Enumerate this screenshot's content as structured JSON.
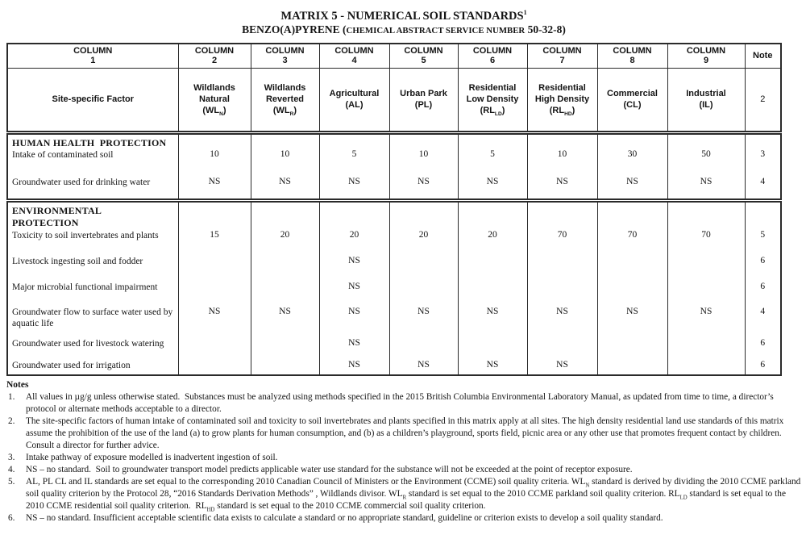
{
  "title": {
    "line1_html": "MATRIX 5 - NUMERICAL SOIL STANDARDS<sup>1</sup>",
    "line2_html": "BENZO(A)PYRENE (<span class='cas'>CHEMICAL ABSTRACT SERVICE NUMBER</span> 50-32-8)"
  },
  "table": {
    "columns": [
      {
        "num_html": "COLUMN<br>1",
        "label_html": "Site-specific Factor"
      },
      {
        "num_html": "COLUMN<br>2",
        "label_html": "Wildlands<br>Natural<br>(WL<sub>N</sub>)"
      },
      {
        "num_html": "COLUMN<br>3",
        "label_html": "Wildlands<br>Reverted<br>(WL<sub>R</sub>)"
      },
      {
        "num_html": "COLUMN<br>4",
        "label_html": "Agricultural<br>(AL)"
      },
      {
        "num_html": "COLUMN<br>5",
        "label_html": "Urban Park<br>(PL)"
      },
      {
        "num_html": "COLUMN<br>6",
        "label_html": "Residential<br>Low Density<br>(RL<sub>LD</sub>)"
      },
      {
        "num_html": "COLUMN<br>7",
        "label_html": "Residential<br>High Density<br>(RL<sub>HD</sub>)"
      },
      {
        "num_html": "COLUMN<br>8",
        "label_html": "Commercial<br>(CL)"
      },
      {
        "num_html": "COLUMN<br>9",
        "label_html": "Industrial<br>(IL)"
      },
      {
        "num_html": "Note",
        "label_html": "2"
      }
    ],
    "sections": [
      {
        "heading_html": "HUMAN HEALTH&nbsp; PROTECTION",
        "rows": [
          {
            "label": "Intake of contaminated soil",
            "values": [
              "10",
              "10",
              "5",
              "10",
              "5",
              "10",
              "30",
              "50"
            ],
            "note": "3"
          },
          {
            "label": "Groundwater used for drinking water",
            "values": [
              "NS",
              "NS",
              "NS",
              "NS",
              "NS",
              "NS",
              "NS",
              "NS"
            ],
            "note": "4"
          }
        ]
      },
      {
        "heading_html": "ENVIRONMENTAL<br>PROTECTION",
        "rows": [
          {
            "label": "Toxicity to soil invertebrates and plants",
            "values": [
              "15",
              "20",
              "20",
              "20",
              "20",
              "70",
              "70",
              "70"
            ],
            "note": "5"
          },
          {
            "label": "Livestock ingesting soil and fodder",
            "values": [
              "",
              "",
              "NS",
              "",
              "",
              "",
              "",
              ""
            ],
            "note": "6"
          },
          {
            "label": "Major microbial functional impairment",
            "values": [
              "",
              "",
              "NS",
              "",
              "",
              "",
              "",
              ""
            ],
            "note": "6"
          },
          {
            "label": "Groundwater flow to surface water used by aquatic life",
            "values": [
              "NS",
              "NS",
              "NS",
              "NS",
              "NS",
              "NS",
              "NS",
              "NS"
            ],
            "note": "4"
          },
          {
            "label": "Groundwater used for livestock watering",
            "values": [
              "",
              "",
              "NS",
              "",
              "",
              "",
              "",
              ""
            ],
            "note": "6"
          },
          {
            "label": "Groundwater used for irrigation",
            "values": [
              "",
              "",
              "NS",
              "NS",
              "NS",
              "NS",
              "",
              ""
            ],
            "note": "6"
          }
        ]
      }
    ]
  },
  "notes": {
    "heading": "Notes",
    "items": [
      {
        "num": "1.",
        "text_html": "All values in µg/g unless otherwise stated.&nbsp; Substances must be analyzed using methods specified in the 2015 British Columbia Environmental Laboratory Manual, as updated from time to time, a director’s protocol or alternate methods acceptable to a director."
      },
      {
        "num": "2.",
        "text_html": "The site-specific factors of human intake of contaminated soil and toxicity to soil invertebrates and plants specified in this matrix apply at all sites. The high density residential land use standards of this matrix assume the prohibition of the use of the land (a) to grow plants for human consumption, and (b) as a children’s playground, sports field, picnic area or any other use that promotes frequent contact by children. Consult a director for further advice."
      },
      {
        "num": "3.",
        "text_html": "Intake pathway of exposure modelled is inadvertent ingestion of soil."
      },
      {
        "num": "4.",
        "text_html": "NS – no standard.&nbsp; Soil to groundwater transport model predicts applicable water use standard for the substance will not be exceeded at the point of receptor exposure."
      },
      {
        "num": "5.",
        "text_html": "AL, PL CL and IL standards are set equal to the corresponding 2010 Canadian Council of Ministers or the Environment (CCME) soil quality criteria. WL<sub>N</sub> standard is derived by dividing the 2010 CCME parkland soil quality criterion by the Protocol 28, “2016 Standards Derivation Methods” , Wildlands divisor. WL<sub>R</sub> standard is set equal to the 2010 CCME parkland soil quality criterion. RL<sub>LD</sub> standard is set equal to the 2010 CCME residential soil quality criterion.&nbsp; RL<sub>HD</sub> standard is set equal to the 2010 CCME commercial soil quality criterion."
      },
      {
        "num": "6.",
        "text_html": "NS – no standard. Insufficient acceptable scientific data exists to calculate a standard or no appropriate standard, guideline or criterion exists to develop a soil quality standard."
      }
    ]
  }
}
